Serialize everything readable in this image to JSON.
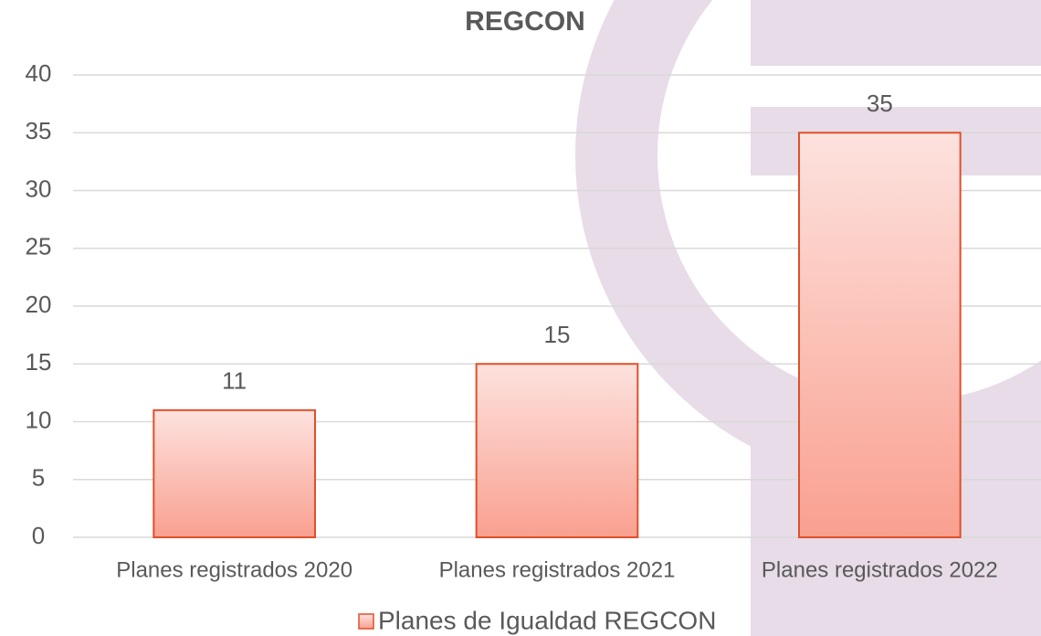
{
  "chart_data": {
    "type": "bar",
    "title": "REGCON",
    "categories": [
      "Planes registrados 2020",
      "Planes registrados 2021",
      "Planes registrados 2022"
    ],
    "series": [
      {
        "name": "Planes de Igualdad REGCON",
        "color": "#f9a090",
        "values": [
          11,
          15,
          35
        ]
      }
    ],
    "ylim": [
      0,
      40
    ],
    "yticks": [
      0,
      5,
      10,
      15,
      20,
      25,
      30,
      35,
      40
    ],
    "grid": true,
    "legend": "bottom"
  }
}
